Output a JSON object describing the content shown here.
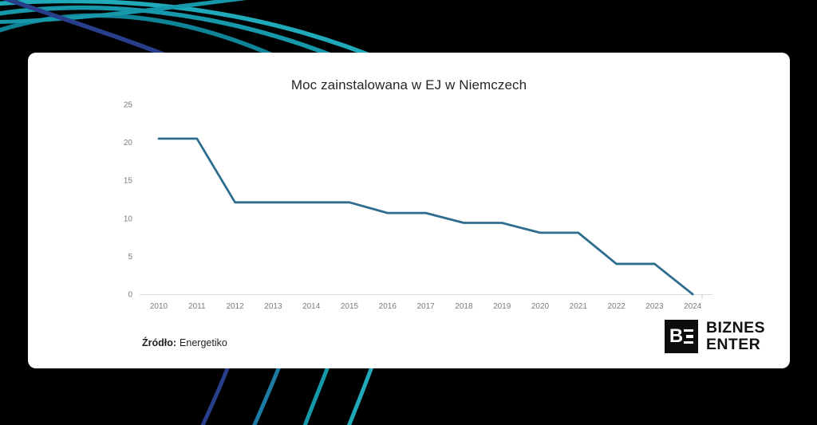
{
  "title": "Moc zainstalowana w EJ w Niemczech",
  "source": {
    "label": "Źródło:",
    "value": "Energetiko"
  },
  "logo": {
    "monogram_b": "B",
    "line1": "BIZNES",
    "line2": "ENTER"
  },
  "colors": {
    "page_bg": "#000000",
    "card_bg": "#ffffff",
    "line": "#2e6d8e",
    "axis": "#dcdcdc",
    "axis_tick": "#c4c4c4",
    "tick_label": "#7b7b7b",
    "title_text": "#262626",
    "decor_navy": "#283e8b",
    "decor_blue": "#1d7ca4",
    "decor_teal": "#1697aa",
    "decor_teal_dark": "#0f8496",
    "decor_cyan": "#1fa9b9"
  },
  "chart_data": {
    "type": "line",
    "title": "Moc zainstalowana w EJ w Niemczech",
    "x": [
      "2010",
      "2011",
      "2012",
      "2013",
      "2014",
      "2015",
      "2016",
      "2017",
      "2018",
      "2019",
      "2020",
      "2021",
      "2022",
      "2023",
      "2024"
    ],
    "values": [
      20.5,
      20.5,
      12.1,
      12.1,
      12.1,
      12.1,
      10.7,
      10.7,
      9.4,
      9.4,
      8.1,
      8.1,
      4,
      4,
      0
    ],
    "yticks": [
      0,
      5,
      10,
      15,
      20,
      25
    ],
    "ylim": [
      0,
      25
    ],
    "xlabel": "",
    "ylabel": "",
    "grid": false,
    "legend": "none",
    "markers": false
  }
}
